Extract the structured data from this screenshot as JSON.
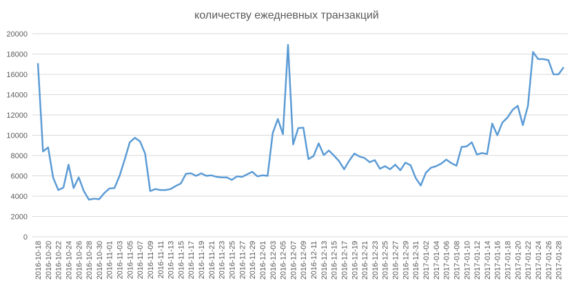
{
  "chart_data": {
    "type": "line",
    "title": "количеству ежедневных транзакций",
    "categories": [
      "2016-10-18",
      null,
      "2016-10-20",
      null,
      "2016-10-22",
      null,
      "2016-10-24",
      null,
      "2016-10-26",
      null,
      "2016-10-28",
      null,
      "2016-10-30",
      null,
      "2016-11-01",
      null,
      "2016-11-03",
      null,
      "2016-11-05",
      null,
      "2016-11-07",
      null,
      "2016-11-09",
      null,
      "2016-11-11",
      null,
      "2016-11-13",
      null,
      "2016-11-15",
      null,
      "2016-11-17",
      null,
      "2016-11-19",
      null,
      "2016-11-21",
      null,
      "2016-11-23",
      null,
      "2016-11-25",
      null,
      "2016-11-27",
      null,
      "2016-11-29",
      null,
      "2016-12-01",
      null,
      "2016-12-03",
      null,
      "2016-12-05",
      null,
      "2016-12-07",
      null,
      "2016-12-09",
      null,
      "2016-12-11",
      null,
      "2016-12-13",
      null,
      "2016-12-15",
      null,
      "2016-12-17",
      null,
      "2016-12-19",
      null,
      "2016-12-21",
      null,
      "2016-12-23",
      null,
      "2016-12-25",
      null,
      "2016-12-27",
      null,
      "2016-12-29",
      null,
      "2016-12-31",
      null,
      "2017-01-02",
      null,
      "2017-01-04",
      null,
      "2017-01-06",
      null,
      "2017-01-08",
      null,
      "2017-01-10",
      null,
      "2017-01-12",
      null,
      "2017-01-14",
      null,
      "2017-01-16",
      null,
      "2017-01-18",
      null,
      "2017-01-20",
      null,
      "2017-01-22",
      null,
      "2017-01-24",
      null,
      "2017-01-26",
      null,
      "2017-01-28",
      null
    ],
    "series": [
      {
        "color": "#5b9bd5",
        "values": [
          17100,
          8400,
          8800,
          5800,
          4600,
          4850,
          7100,
          4800,
          5850,
          4500,
          3650,
          3750,
          3700,
          4300,
          4750,
          4800,
          6000,
          7600,
          9300,
          9750,
          9400,
          8200,
          4500,
          4700,
          4600,
          4600,
          4700,
          5000,
          5250,
          6200,
          6250,
          6000,
          6250,
          6000,
          6050,
          5900,
          5850,
          5850,
          5600,
          5950,
          5900,
          6150,
          6400,
          5950,
          6050,
          6000,
          10200,
          11600,
          10100,
          18900,
          9100,
          10700,
          10750,
          7650,
          7950,
          9200,
          8050,
          8500,
          8000,
          7450,
          6650,
          7500,
          8200,
          7900,
          7750,
          7350,
          7550,
          6700,
          6950,
          6650,
          7100,
          6550,
          7300,
          7050,
          5800,
          5050,
          6300,
          6800,
          6950,
          7200,
          7600,
          7250,
          7000,
          8850,
          8900,
          9300,
          8100,
          8250,
          8150,
          11150,
          10000,
          11250,
          11750,
          12500,
          12900,
          11000,
          12900,
          18200,
          17500,
          17500,
          17400,
          16000,
          16000,
          16700
        ]
      }
    ],
    "ylim": [
      0,
      20000
    ],
    "yticks": [
      0,
      2000,
      4000,
      6000,
      8000,
      10000,
      12000,
      14000,
      16000,
      18000,
      20000
    ],
    "grid": true
  }
}
